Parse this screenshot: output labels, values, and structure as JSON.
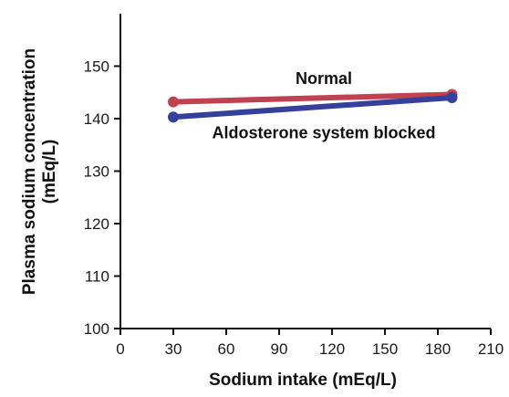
{
  "chart_data": {
    "type": "line",
    "xlabel": "Sodium intake (mEq/L)",
    "ylabel_lines": [
      "Plasma sodium concentration",
      "(mEq/L)"
    ],
    "xlim": [
      0,
      210
    ],
    "ylim": [
      100,
      160
    ],
    "x_ticks": [
      0,
      30,
      60,
      90,
      120,
      150,
      180,
      210
    ],
    "y_ticks": [
      100,
      110,
      120,
      130,
      140,
      150
    ],
    "grid": false,
    "legend": "inline labels",
    "series": [
      {
        "name": "Normal",
        "color": "#c0414f",
        "points": [
          {
            "x": 30,
            "y": 143.2
          },
          {
            "x": 188,
            "y": 144.6
          }
        ],
        "label_anchor": {
          "x": 105,
          "y": 146.6
        }
      },
      {
        "name": "Aldosterone system blocked",
        "color": "#34409a",
        "points": [
          {
            "x": 30,
            "y": 140.3
          },
          {
            "x": 188,
            "y": 144.0
          }
        ],
        "label_anchor": {
          "x": 105,
          "y": 136.3
        }
      }
    ]
  }
}
